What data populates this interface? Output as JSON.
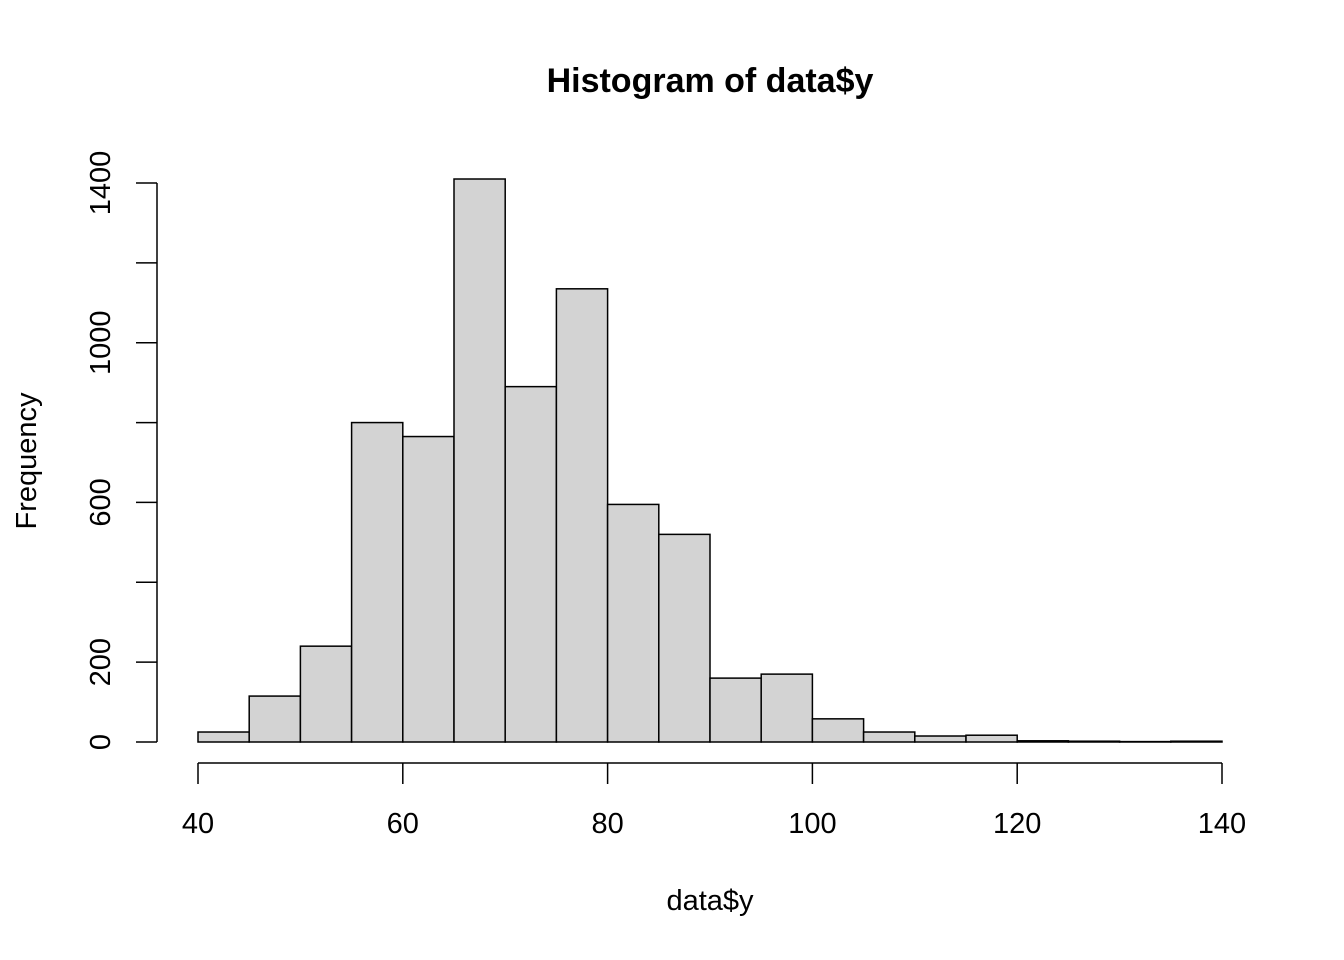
{
  "chart_data": {
    "type": "bar",
    "title": "Histogram of data$y",
    "xlabel": "data$y",
    "ylabel": "Frequency",
    "bin_edges": [
      40,
      45,
      50,
      55,
      60,
      65,
      70,
      75,
      80,
      85,
      90,
      95,
      100,
      105,
      110,
      115,
      120,
      125,
      130,
      135,
      140
    ],
    "values": [
      25,
      115,
      240,
      800,
      765,
      1410,
      890,
      1135,
      595,
      520,
      160,
      170,
      58,
      25,
      15,
      17,
      3,
      2,
      1,
      2
    ],
    "xlim": [
      40,
      140
    ],
    "ylim": [
      0,
      1400
    ],
    "x_ticks": [
      40,
      60,
      80,
      100,
      120,
      140
    ],
    "x_tick_labels": [
      "40",
      "60",
      "80",
      "100",
      "120",
      "140"
    ],
    "y_ticks": [
      0,
      200,
      400,
      600,
      800,
      1000,
      1200,
      1400
    ],
    "y_tick_labels": [
      "0",
      "200",
      "",
      "600",
      "",
      "1000",
      "",
      "1400"
    ],
    "bar_fill": "#d3d3d3",
    "bar_stroke": "#000000",
    "grid": false,
    "legend": "none"
  }
}
